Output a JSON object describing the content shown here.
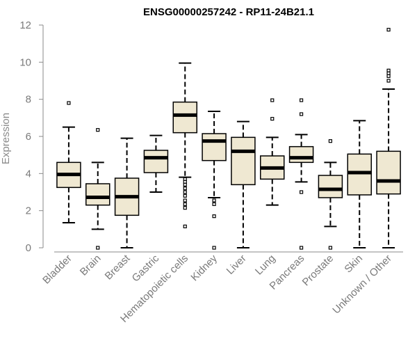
{
  "chart_data": {
    "type": "box",
    "title": "ENSG00000257242 - RP11-24B21.1",
    "ylabel": "Expression",
    "xlabel": "",
    "ylim": [
      0,
      12
    ],
    "yticks": [
      0,
      2,
      4,
      6,
      8,
      10,
      12
    ],
    "grid": false,
    "box_fill": "#efe8d2",
    "box_stroke": "#000000",
    "axis_color": "#8a8a8a",
    "categories": [
      "Bladder",
      "Brain",
      "Breast",
      "Gastric",
      "Hematopoietic cells",
      "Kidney",
      "Liver",
      "Lung",
      "Pancreas",
      "Prostate",
      "Skin",
      "Unknown / Other"
    ],
    "boxes": [
      {
        "category": "Bladder",
        "whisker_low": 1.35,
        "q1": 3.25,
        "median": 3.95,
        "q3": 4.6,
        "whisker_high": 6.5,
        "outliers": [
          7.8
        ]
      },
      {
        "category": "Brain",
        "whisker_low": 1.0,
        "q1": 2.3,
        "median": 2.72,
        "q3": 3.45,
        "whisker_high": 4.6,
        "outliers": [
          6.35,
          0.0
        ]
      },
      {
        "category": "Breast",
        "whisker_low": 0.0,
        "q1": 1.75,
        "median": 2.75,
        "q3": 3.75,
        "whisker_high": 5.9,
        "outliers": []
      },
      {
        "category": "Gastric",
        "whisker_low": 3.0,
        "q1": 4.05,
        "median": 4.85,
        "q3": 5.25,
        "whisker_high": 6.05,
        "outliers": []
      },
      {
        "category": "Hematopoietic cells",
        "whisker_low": 3.8,
        "q1": 6.2,
        "median": 7.15,
        "q3": 7.85,
        "whisker_high": 9.95,
        "outliers": [
          3.7,
          3.55,
          3.4,
          3.2,
          3.0,
          2.8,
          2.55,
          2.35,
          2.15,
          1.15
        ]
      },
      {
        "category": "Kidney",
        "whisker_low": 2.7,
        "q1": 4.7,
        "median": 5.75,
        "q3": 6.15,
        "whisker_high": 7.35,
        "outliers": [
          2.55,
          2.35,
          1.7,
          0.0
        ]
      },
      {
        "category": "Liver",
        "whisker_low": 0.0,
        "q1": 3.4,
        "median": 5.2,
        "q3": 5.95,
        "whisker_high": 6.8,
        "outliers": []
      },
      {
        "category": "Lung",
        "whisker_low": 2.3,
        "q1": 3.7,
        "median": 4.3,
        "q3": 4.95,
        "whisker_high": 5.95,
        "outliers": [
          7.95,
          6.95
        ]
      },
      {
        "category": "Pancreas",
        "whisker_low": 3.55,
        "q1": 4.6,
        "median": 4.85,
        "q3": 5.45,
        "whisker_high": 6.1,
        "outliers": [
          7.95,
          7.2,
          3.0,
          0.0
        ]
      },
      {
        "category": "Prostate",
        "whisker_low": 1.15,
        "q1": 2.7,
        "median": 3.15,
        "q3": 3.9,
        "whisker_high": 4.6,
        "outliers": [
          5.75,
          0.0
        ]
      },
      {
        "category": "Skin",
        "whisker_low": 0.0,
        "q1": 2.85,
        "median": 4.05,
        "q3": 5.05,
        "whisker_high": 6.85,
        "outliers": []
      },
      {
        "category": "Unknown / Other",
        "whisker_low": 0.0,
        "q1": 2.9,
        "median": 3.6,
        "q3": 5.2,
        "whisker_high": 8.55,
        "outliers": [
          11.75,
          9.55,
          9.4,
          9.25,
          9.0
        ]
      }
    ]
  }
}
